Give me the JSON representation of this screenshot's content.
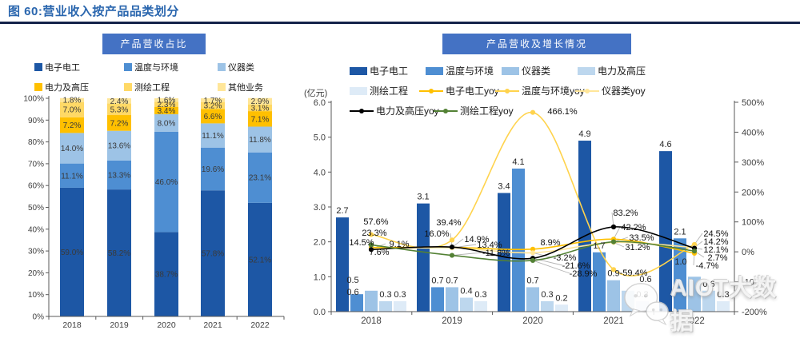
{
  "figure_title": "图 60:营业收入按产品品类划分",
  "left_chart": {
    "header": "产品营收占比"
  },
  "right_chart": {
    "header": "产品营收及增长情况",
    "unit_label": "(亿元)"
  },
  "watermark": {
    "icon": "wechat-icon",
    "text": "AIOT大数据"
  },
  "colors": {
    "title_blue": "#2A66AE",
    "rule_navy": "#14224A",
    "header_bg": "#4472C4",
    "axis_gray": "#595959",
    "label_dark": "#262626",
    "leader_gray": "#B3B3B3"
  },
  "chart_data": [
    {
      "type": "bar",
      "subtype": "stacked-100pct-column",
      "title": "产品营收占比",
      "categories": [
        "2018",
        "2019",
        "2020",
        "2021",
        "2022"
      ],
      "series": [
        {
          "name": "电子电工",
          "color": "#1D57A5",
          "values": [
            59.0,
            58.2,
            38.7,
            57.8,
            52.1
          ]
        },
        {
          "name": "温度与环境",
          "color": "#4E8ED2",
          "values": [
            11.1,
            13.3,
            46.0,
            19.6,
            23.1
          ]
        },
        {
          "name": "仪器类",
          "color": "#9DC3E6",
          "values": [
            14.0,
            13.6,
            8.0,
            11.1,
            11.8
          ]
        },
        {
          "name": "电力及高压",
          "color": "#FFC000",
          "values": [
            7.2,
            7.2,
            3.4,
            6.6,
            7.1
          ]
        },
        {
          "name": "测绘工程",
          "color": "#FFD966",
          "values": [
            7.0,
            5.3,
            2.3,
            3.2,
            3.1
          ]
        },
        {
          "name": "其他业务",
          "color": "#FFE699",
          "values": [
            1.8,
            2.4,
            1.6,
            1.7,
            2.9
          ]
        }
      ],
      "ylabel": "",
      "ylim": [
        0,
        100
      ],
      "ytick_labels": [
        "100%",
        "90%",
        "80%",
        "70%",
        "60%",
        "50%",
        "40%",
        "30%",
        "20%",
        "10%",
        "0%"
      ],
      "grid": false,
      "legend_position": "top"
    },
    {
      "type": "combo-bar-line",
      "title": "产品营收及增长情况",
      "unit": "亿元",
      "categories": [
        "2018",
        "2019",
        "2020",
        "2021",
        "2022"
      ],
      "bar_series": [
        {
          "name": "电子电工",
          "color": "#1D57A5",
          "values": [
            2.7,
            3.1,
            3.4,
            4.9,
            4.6
          ]
        },
        {
          "name": "温度与环境",
          "color": "#4E8ED2",
          "values": [
            0.5,
            0.7,
            4.1,
            1.7,
            2.1
          ]
        },
        {
          "name": "仪器类",
          "color": "#9DC3E6",
          "values": [
            0.6,
            0.7,
            0.7,
            0.9,
            1.0
          ]
        },
        {
          "name": "电力及高压",
          "color": "#BDD7EE",
          "values": [
            0.3,
            0.4,
            0.3,
            0.6,
            0.6
          ]
        },
        {
          "name": "测绘工程",
          "color": "#DEEBF7",
          "values": [
            0.3,
            0.3,
            0.2,
            0.3,
            0.3
          ]
        }
      ],
      "line_series": [
        {
          "name": "电子电工yoy",
          "color": "#FFC000",
          "values": [
            14.5,
            14.9,
            8.9,
            42.2,
            -4.7
          ]
        },
        {
          "name": "温度与环境yoy",
          "color": "#FFD34D",
          "values": [
            57.6,
            39.4,
            466.1,
            -59.4,
            24.5
          ]
        },
        {
          "name": "仪器类yoy",
          "color": "#FFE699",
          "values": [
            9.1,
            13.4,
            -3.2,
            31.2,
            14.2
          ]
        },
        {
          "name": "电力及高压yoy",
          "color": "#000000",
          "values": [
            7.6,
            16.0,
            -21.6,
            83.2,
            12.1
          ]
        },
        {
          "name": "测绘工程yoy",
          "color": "#538135",
          "values": [
            23.3,
            -11.8,
            -28.9,
            33.5,
            2.7
          ]
        }
      ],
      "left_axis": {
        "tick_labels": [
          "6.0",
          "5.0",
          "4.0",
          "3.0",
          "2.0",
          "1.0",
          "0.0"
        ],
        "range": [
          0,
          6
        ]
      },
      "right_axis": {
        "tick_labels": [
          "500%",
          "400%",
          "300%",
          "200%",
          "100%",
          "0%",
          "-100%",
          "-200%"
        ],
        "range": [
          -200,
          500
        ]
      },
      "grid": false,
      "legend_position": "top"
    }
  ]
}
